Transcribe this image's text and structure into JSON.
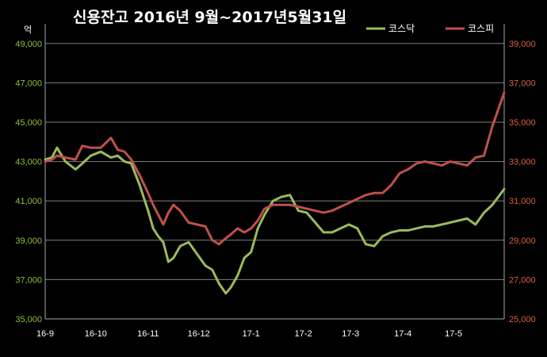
{
  "chart_data": {
    "type": "line",
    "title": "신용잔고 2016년 9월~2017년5월31일",
    "ylabel": "억",
    "x_ticks": [
      "16-9",
      "16-10",
      "16-11",
      "16-12",
      "17-1",
      "17-2",
      "17-3",
      "17-4",
      "17-5"
    ],
    "y_left": {
      "lim": [
        35000,
        50000
      ],
      "ticks": [
        "35,000",
        "37,000",
        "39,000",
        "41,000",
        "43,000",
        "45,000",
        "47,000",
        "49,000"
      ]
    },
    "y_right": {
      "lim": [
        25000,
        40000
      ],
      "ticks": [
        "25,000",
        "27,000",
        "29,000",
        "31,000",
        "33,000",
        "35,000",
        "37,000",
        "39,000"
      ]
    },
    "grid": true,
    "legend_position": "top-right",
    "colors": {
      "kosdaq": "#9bbb59",
      "kospi": "#c0504d",
      "left_axis": "#8fbf3f",
      "right_axis": "#d9603f"
    },
    "series": [
      {
        "name": "코스닥",
        "axis": "left",
        "x": [
          "2016-09-01",
          "2016-09-05",
          "2016-09-08",
          "2016-09-13",
          "2016-09-19",
          "2016-09-23",
          "2016-09-28",
          "2016-10-04",
          "2016-10-10",
          "2016-10-14",
          "2016-10-18",
          "2016-10-22",
          "2016-10-27",
          "2016-11-01",
          "2016-11-04",
          "2016-11-07",
          "2016-11-10",
          "2016-11-13",
          "2016-11-16",
          "2016-11-20",
          "2016-11-25",
          "2016-11-30",
          "2016-12-05",
          "2016-12-09",
          "2016-12-13",
          "2016-12-17",
          "2016-12-20",
          "2016-12-24",
          "2016-12-28",
          "2017-01-01",
          "2017-01-05",
          "2017-01-09",
          "2017-01-14",
          "2017-01-19",
          "2017-01-24",
          "2017-01-29",
          "2017-02-03",
          "2017-02-08",
          "2017-02-13",
          "2017-02-18",
          "2017-02-23",
          "2017-02-28",
          "2017-03-05",
          "2017-03-10",
          "2017-03-15",
          "2017-03-20",
          "2017-03-25",
          "2017-03-30",
          "2017-04-04",
          "2017-04-09",
          "2017-04-14",
          "2017-04-19",
          "2017-04-24",
          "2017-04-29",
          "2017-05-04",
          "2017-05-09",
          "2017-05-14",
          "2017-05-19",
          "2017-05-24",
          "2017-05-31"
        ],
        "values": [
          43100,
          43200,
          43700,
          43000,
          42600,
          42900,
          43300,
          43500,
          43200,
          43300,
          43000,
          42900,
          41800,
          40500,
          39600,
          39200,
          38900,
          37900,
          38100,
          38700,
          38900,
          38300,
          37700,
          37500,
          36800,
          36300,
          36600,
          37200,
          38100,
          38400,
          39600,
          40300,
          41000,
          41200,
          41300,
          40500,
          40400,
          39900,
          39400,
          39400,
          39600,
          39800,
          39600,
          38800,
          38700,
          39200,
          39400,
          39500,
          39500,
          39600,
          39700,
          39700,
          39800,
          39900,
          40000,
          40100,
          39800,
          40400,
          40800,
          41600
        ]
      },
      {
        "name": "코스피",
        "axis": "right",
        "x": [
          "2016-09-01",
          "2016-09-05",
          "2016-09-08",
          "2016-09-13",
          "2016-09-19",
          "2016-09-23",
          "2016-09-28",
          "2016-10-04",
          "2016-10-10",
          "2016-10-14",
          "2016-10-18",
          "2016-10-22",
          "2016-10-27",
          "2016-11-01",
          "2016-11-04",
          "2016-11-07",
          "2016-11-10",
          "2016-11-13",
          "2016-11-16",
          "2016-11-20",
          "2016-11-25",
          "2016-11-30",
          "2016-12-05",
          "2016-12-09",
          "2016-12-13",
          "2016-12-17",
          "2016-12-20",
          "2016-12-24",
          "2016-12-28",
          "2017-01-01",
          "2017-01-05",
          "2017-01-09",
          "2017-01-14",
          "2017-01-19",
          "2017-01-24",
          "2017-01-29",
          "2017-02-03",
          "2017-02-08",
          "2017-02-13",
          "2017-02-18",
          "2017-02-23",
          "2017-02-28",
          "2017-03-05",
          "2017-03-10",
          "2017-03-15",
          "2017-03-20",
          "2017-03-25",
          "2017-03-30",
          "2017-04-04",
          "2017-04-09",
          "2017-04-14",
          "2017-04-19",
          "2017-04-24",
          "2017-04-29",
          "2017-05-04",
          "2017-05-09",
          "2017-05-14",
          "2017-05-19",
          "2017-05-24",
          "2017-05-31"
        ],
        "values": [
          33000,
          33100,
          33300,
          33200,
          33100,
          33800,
          33700,
          33700,
          34200,
          33600,
          33500,
          33100,
          32300,
          31400,
          30800,
          30300,
          29800,
          30400,
          30800,
          30500,
          29900,
          29800,
          29700,
          29000,
          28800,
          29100,
          29300,
          29600,
          29400,
          29600,
          30000,
          30600,
          30800,
          30800,
          30800,
          30700,
          30600,
          30500,
          30400,
          30500,
          30700,
          30900,
          31100,
          31300,
          31400,
          31400,
          31800,
          32400,
          32600,
          32900,
          33000,
          32900,
          32800,
          33000,
          32900,
          32800,
          33200,
          33300,
          34800,
          36500
        ]
      }
    ]
  }
}
